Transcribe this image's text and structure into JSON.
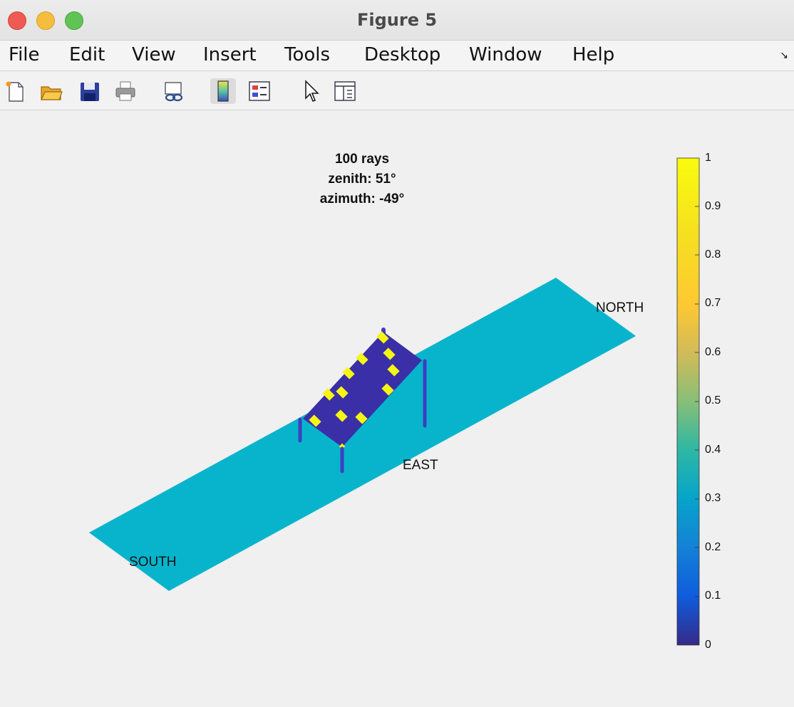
{
  "window": {
    "title": "Figure 5"
  },
  "menu": [
    "File",
    "Edit",
    "View",
    "Insert",
    "Tools",
    "Desktop",
    "Window",
    "Help"
  ],
  "toolbar": {
    "buttons": [
      {
        "name": "new-figure"
      },
      {
        "name": "open-file"
      },
      {
        "name": "save"
      },
      {
        "name": "print"
      },
      {
        "name": "link-plot"
      },
      {
        "name": "insert-colorbar"
      },
      {
        "name": "insert-legend"
      },
      {
        "name": "edit-plot"
      },
      {
        "name": "open-property-inspector"
      }
    ]
  },
  "plot": {
    "title_lines": [
      "100 rays",
      "zenith: 51°",
      "azimuth: -49°"
    ],
    "direction_labels": {
      "north": "NORTH",
      "east": "EAST",
      "south": "SOUTH"
    },
    "colorbar": {
      "ticks": [
        "1",
        "0.9",
        "0.8",
        "0.7",
        "0.6",
        "0.5",
        "0.4",
        "0.3",
        "0.2",
        "0.1",
        "0"
      ],
      "range": [
        0,
        1
      ],
      "colormap": "parula"
    },
    "colors": {
      "ground": "#07b4cc",
      "panel": "#3a2fa6",
      "post": "#3d3fbf",
      "ray_hit": "#f6f614"
    }
  }
}
